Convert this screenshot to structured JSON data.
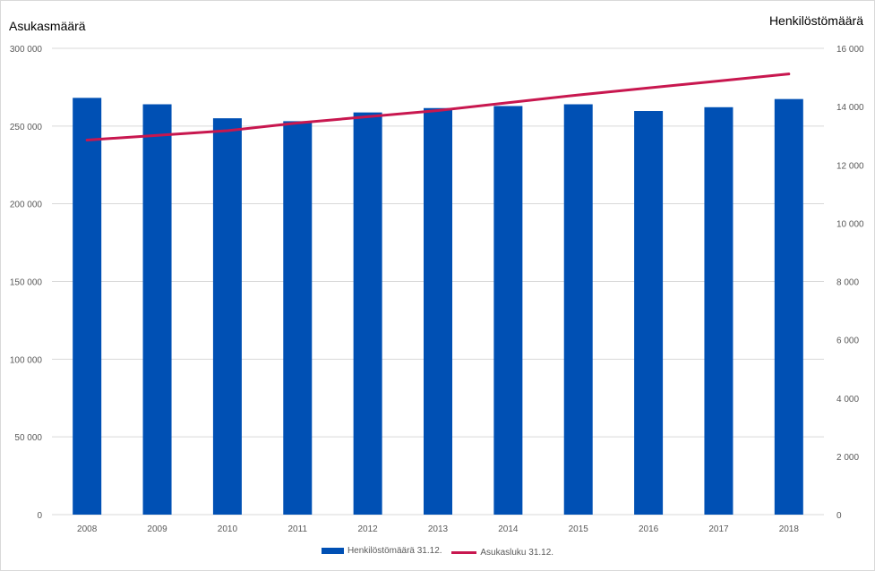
{
  "chart_data": {
    "type": "bar",
    "categories": [
      "2008",
      "2009",
      "2010",
      "2011",
      "2012",
      "2013",
      "2014",
      "2015",
      "2016",
      "2017",
      "2018"
    ],
    "series": [
      {
        "name": "Henkilöstömäärä 31.12.",
        "type": "bar",
        "axis": "right",
        "color": "#0050b4",
        "values": [
          14300,
          14080,
          13600,
          13500,
          13800,
          13950,
          14020,
          14080,
          13850,
          13980,
          14260
        ]
      },
      {
        "name": "Asukasluku 31.12.",
        "type": "line",
        "axis": "left",
        "color": "#c8174f",
        "values": [
          241000,
          244000,
          247000,
          252000,
          256000,
          260000,
          265000,
          270000,
          274500,
          279000,
          283500
        ]
      }
    ],
    "ylabel_left": "Asukasmäärä",
    "ylabel_right": "Henkilöstömäärä",
    "ylim_left": [
      0,
      300000
    ],
    "ylim_right": [
      0,
      16000
    ],
    "yticks_left": [
      "0",
      "50 000",
      "100 000",
      "150 000",
      "200 000",
      "250 000",
      "300 000"
    ],
    "yticks_right": [
      "0",
      "2 000",
      "4 000",
      "6 000",
      "8 000",
      "10 000",
      "12 000",
      "14 000",
      "16 000"
    ],
    "grid": true,
    "legend_position": "bottom"
  }
}
